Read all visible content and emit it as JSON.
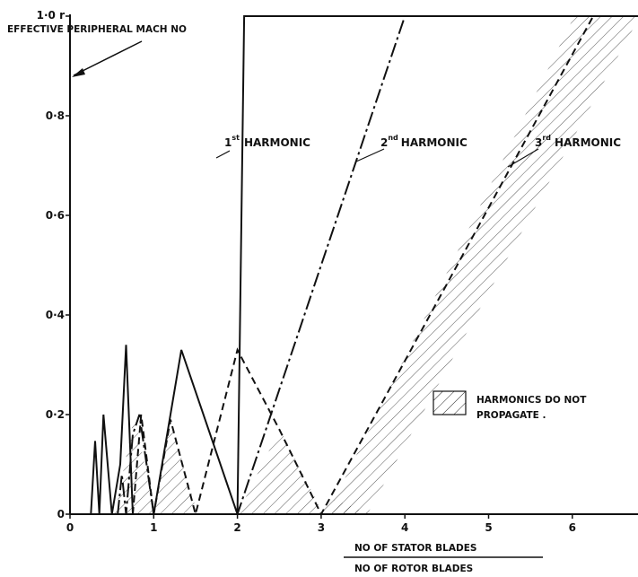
{
  "chart_data": {
    "type": "line",
    "title": "",
    "xlabel_numerator": "NO   OF   STATOR  BLADES",
    "xlabel_denominator": "NO   OF   ROTOR   BLADES",
    "ylabel": "EFFECTIVE  PERIPHERAL  MACH  NO",
    "xlim": [
      0,
      6.9
    ],
    "ylim": [
      0,
      1.0
    ],
    "x_ticks": [
      "0",
      "1",
      "2",
      "3",
      "4",
      "5",
      "6"
    ],
    "y_ticks": [
      "0",
      "0·2",
      "0·4",
      "0·6",
      "0·8",
      "1·0"
    ],
    "series": [
      {
        "name": "1st HARMONIC",
        "style": "solid",
        "x": [
          0.25,
          0.3,
          0.35,
          0.4,
          0.5,
          0.6,
          0.67,
          0.75,
          1.0,
          1.33,
          2.0,
          2.08,
          6.9
        ],
        "y": [
          0.0,
          0.147,
          0.0,
          0.2,
          0.0,
          0.1,
          0.34,
          0.0,
          0.0,
          0.33,
          0.0,
          1.0,
          1.0
        ]
      },
      {
        "name": "2nd HARMONIC",
        "style": "dash-dot",
        "x": [
          0.57,
          0.62,
          0.67,
          0.75,
          0.83,
          1.0,
          2.0,
          4.0
        ],
        "y": [
          0.0,
          0.08,
          0.0,
          0.16,
          0.2,
          0.0,
          0.0,
          1.0
        ]
      },
      {
        "name": "3rd HARMONIC",
        "style": "dashed",
        "x": [
          0.75,
          0.85,
          1.0,
          1.2,
          1.5,
          2.0,
          2.5,
          3.0,
          6.25
        ],
        "y": [
          0.0,
          0.2,
          0.0,
          0.19,
          0.0,
          0.33,
          0.17,
          0.0,
          1.0
        ]
      }
    ],
    "harmonic_labels": [
      {
        "base": "1",
        "sup": "st",
        "text": "HARMONIC"
      },
      {
        "base": "2",
        "sup": "nd",
        "text": "HARMONIC"
      },
      {
        "base": "3",
        "sup": "rd",
        "text": "HARMONIC"
      }
    ],
    "legend": {
      "hatch_label_line1": "HARMONICS  DO  NOT",
      "hatch_label_line2": "PROPAGATE ."
    },
    "grid": false
  }
}
